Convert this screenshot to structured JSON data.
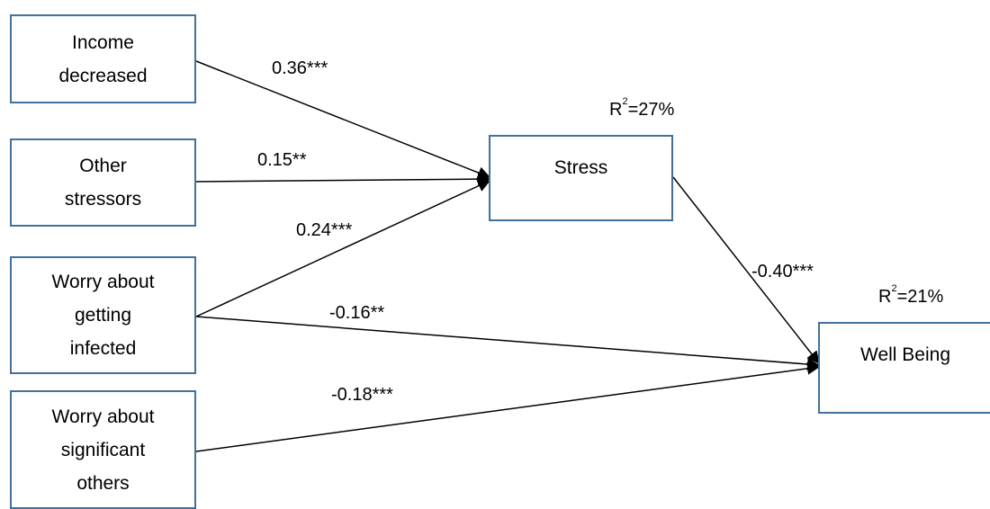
{
  "nodes": {
    "income": "Income\ndecreased",
    "other": "Other\nstressors",
    "worry_infected": "Worry about\ngetting\ninfected",
    "worry_others": "Worry about\nsignificant\nothers",
    "stress": "Stress",
    "wellbeing": "Well Being"
  },
  "paths": {
    "income_stress": "0.36***",
    "other_stress": "0.15**",
    "infected_stress": "0.24***",
    "infected_wellbeing": "-0.16**",
    "others_wellbeing": "-0.18***",
    "stress_wellbeing": "-0.40***"
  },
  "r_squared": {
    "stress": {
      "prefix": "R",
      "sup": "2",
      "value": "=27%"
    },
    "wellbeing": {
      "prefix": "R",
      "sup": "2",
      "value": "=21%"
    }
  },
  "colors": {
    "box_border": "#41719c",
    "line": "#000000"
  }
}
